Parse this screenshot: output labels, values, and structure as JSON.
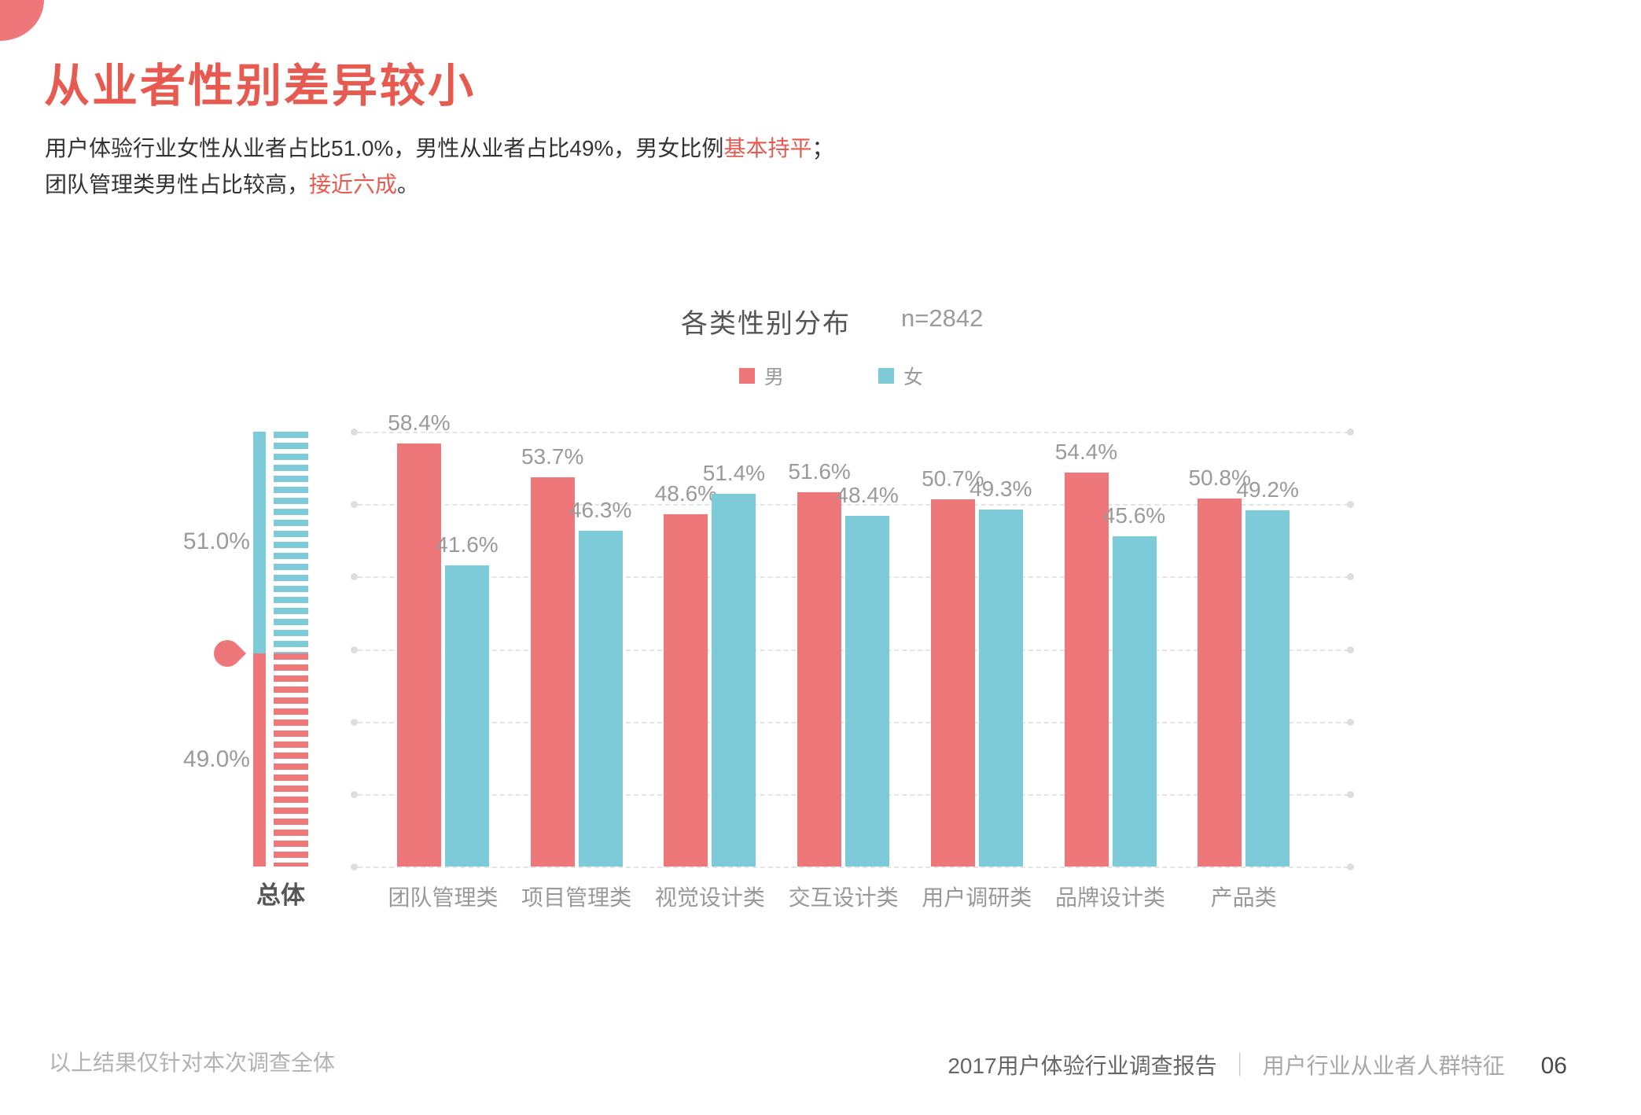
{
  "header": {
    "title": "从业者性别差异较小"
  },
  "intro": {
    "line1": {
      "pre": "用户体验行业女性从业者占比51.0%，男性从业者占比49%，男女比例",
      "highlight": "基本持平",
      "post": "；"
    },
    "line2": {
      "pre": "团队管理类男性占比较高，",
      "highlight": "接近六成",
      "post": "。"
    }
  },
  "chart_data": {
    "type": "bar",
    "title": "各类性别分布",
    "sample_label": "n=2842",
    "unit": "%",
    "categories": [
      "团队管理类",
      "项目管理类",
      "视觉设计类",
      "交互设计类",
      "用户调研类",
      "品牌设计类",
      "产品类"
    ],
    "series": [
      {
        "name": "男",
        "color": "#EE7879",
        "values": [
          58.4,
          53.7,
          48.6,
          51.6,
          50.7,
          54.4,
          50.8
        ]
      },
      {
        "name": "女",
        "color": "#7DCBD8",
        "values": [
          41.6,
          46.3,
          51.4,
          48.4,
          49.3,
          45.6,
          49.2
        ]
      }
    ],
    "overall": {
      "label": "总体",
      "female_value": 51.0,
      "male_value": 49.0
    },
    "ylim": [
      0,
      60
    ],
    "gridline_step": 10,
    "grid": "dashed",
    "legend_position": "top"
  },
  "footer": {
    "note": "以上结果仅针对本次调查全体",
    "report": "2017用户体验行业调查报告",
    "separator": "｜",
    "section": "用户行业从业者人群特征",
    "page": "06"
  },
  "colors": {
    "accent_red": "#E65A50",
    "bar_male": "#EE7879",
    "bar_female": "#7DCBD8",
    "gridline": "#E4E4E4",
    "label_gray": "#9A9A9A",
    "text_dark": "#333333"
  }
}
